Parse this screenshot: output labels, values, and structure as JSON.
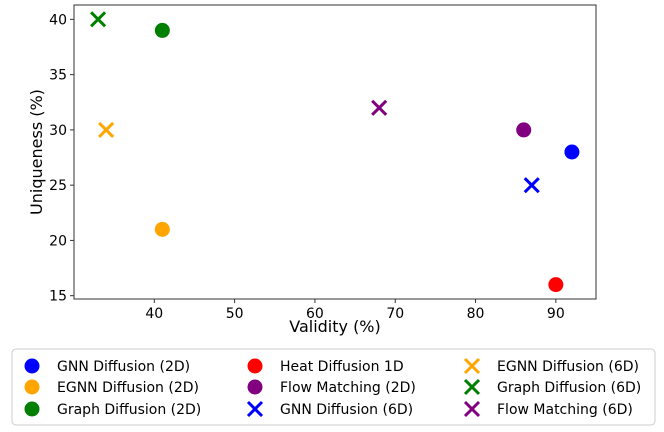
{
  "chart_data": {
    "type": "scatter",
    "xlabel": "Validity (%)",
    "ylabel": "Uniqueness (%)",
    "xlim": [
      30,
      95
    ],
    "ylim": [
      14.7,
      41.3
    ],
    "xticks": [
      40,
      50,
      60,
      70,
      80,
      90
    ],
    "yticks": [
      15,
      20,
      25,
      30,
      35,
      40
    ],
    "grid": false,
    "legend_position": "bottom",
    "series": [
      {
        "name": "GNN Diffusion (2D)",
        "color": "#0000ff",
        "marker": "circle",
        "points": [
          [
            92,
            28
          ]
        ]
      },
      {
        "name": "EGNN Diffusion (2D)",
        "color": "#ffa500",
        "marker": "circle",
        "points": [
          [
            41,
            21
          ]
        ]
      },
      {
        "name": "Graph Diffusion (2D)",
        "color": "#008000",
        "marker": "circle",
        "points": [
          [
            41,
            39
          ]
        ]
      },
      {
        "name": "Heat Diffusion 1D",
        "color": "#ff0000",
        "marker": "circle",
        "points": [
          [
            90,
            16
          ]
        ]
      },
      {
        "name": "Flow Matching (2D)",
        "color": "#800080",
        "marker": "circle",
        "points": [
          [
            86,
            30
          ]
        ]
      },
      {
        "name": "GNN Diffusion (6D)",
        "color": "#0000ff",
        "marker": "x",
        "points": [
          [
            87,
            25
          ]
        ]
      },
      {
        "name": "EGNN Diffusion (6D)",
        "color": "#ffa500",
        "marker": "x",
        "points": [
          [
            34,
            30
          ]
        ]
      },
      {
        "name": "Graph Diffusion (6D)",
        "color": "#008000",
        "marker": "x",
        "points": [
          [
            33,
            40
          ]
        ]
      },
      {
        "name": "Flow Matching (6D)",
        "color": "#800080",
        "marker": "x",
        "points": [
          [
            68,
            32
          ]
        ]
      }
    ]
  }
}
